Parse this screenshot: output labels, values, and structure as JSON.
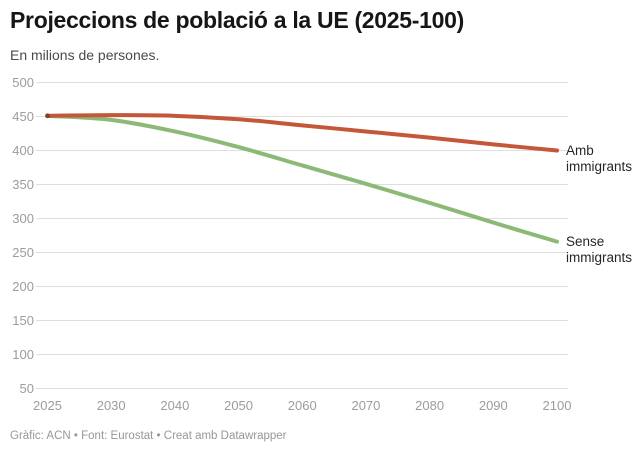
{
  "header": {
    "title": "Projeccions de població a la UE (2025-100)",
    "subtitle": "En milions de persones."
  },
  "footer": {
    "credit": "Gràfic: ACN • Font: Eurostat • Creat amb Datawrapper"
  },
  "chart_data": {
    "type": "line",
    "title": "Projeccions de població a la UE (2025-100)",
    "subtitle": "En milions de persones.",
    "xlabel": "",
    "ylabel": "En milions de persones",
    "x_categories": [
      "2025",
      "2030",
      "2040",
      "2050",
      "2060",
      "2070",
      "2080",
      "2090",
      "2100"
    ],
    "series": [
      {
        "name": "Amb immigrants",
        "label_lines": [
          "Amb",
          "immigrants"
        ],
        "color": "#c4563a",
        "values": [
          451,
          452,
          451,
          446,
          437,
          428,
          419,
          409,
          400
        ]
      },
      {
        "name": "Sense immigrants",
        "label_lines": [
          "Sense",
          "immigrants"
        ],
        "color": "#8cba76",
        "values": [
          451,
          445,
          428,
          405,
          378,
          351,
          323,
          294,
          266
        ]
      }
    ],
    "y_ticks": [
      500,
      450,
      400,
      350,
      300,
      250,
      200,
      150,
      100,
      50
    ],
    "ylim": [
      50,
      500
    ],
    "grid": true,
    "legend_position": "line-end-labels",
    "colors": {
      "gridline": "#dedede",
      "axis_label": "#9c9c9c",
      "end_label": "#262626",
      "start_marker": "#7a4430"
    }
  }
}
